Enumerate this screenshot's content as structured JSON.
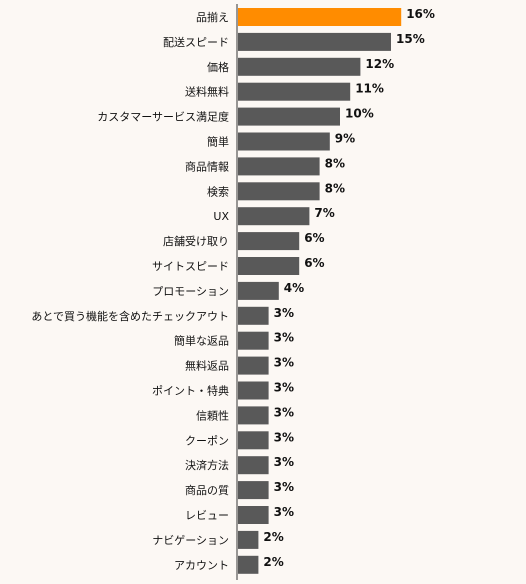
{
  "chart_data": {
    "type": "bar",
    "orientation": "horizontal",
    "categories": [
      "品揃え",
      "配送スピード",
      "価格",
      "送料無料",
      "カスタマーサービス満足度",
      "簡単",
      "商品情報",
      "検索",
      "UX",
      "店舗受け取り",
      "サイトスピード",
      "プロモーション",
      "あとで買う機能を含めたチェックアウト",
      "簡単な返品",
      "無料返品",
      "ポイント・特典",
      "信頼性",
      "クーポン",
      "決済方法",
      "商品の質",
      "レビュー",
      "ナビゲーション",
      "アカウント"
    ],
    "values": [
      16,
      15,
      12,
      11,
      10,
      9,
      8,
      8,
      7,
      6,
      6,
      4,
      3,
      3,
      3,
      3,
      3,
      3,
      3,
      3,
      3,
      2,
      2
    ],
    "value_labels": [
      "16%",
      "15%",
      "12%",
      "11%",
      "10%",
      "9%",
      "8%",
      "8%",
      "7%",
      "6%",
      "6%",
      "4%",
      "3%",
      "3%",
      "3%",
      "3%",
      "3%",
      "3%",
      "3%",
      "3%",
      "3%",
      "2%",
      "2%"
    ],
    "unit": "%",
    "xlim": [
      0,
      16
    ],
    "grid": false,
    "highlight_index": 0,
    "colors": {
      "highlight": "#ff8c00",
      "bar": "#595959",
      "axis": "#333333",
      "background": "#fcf8f4"
    }
  }
}
